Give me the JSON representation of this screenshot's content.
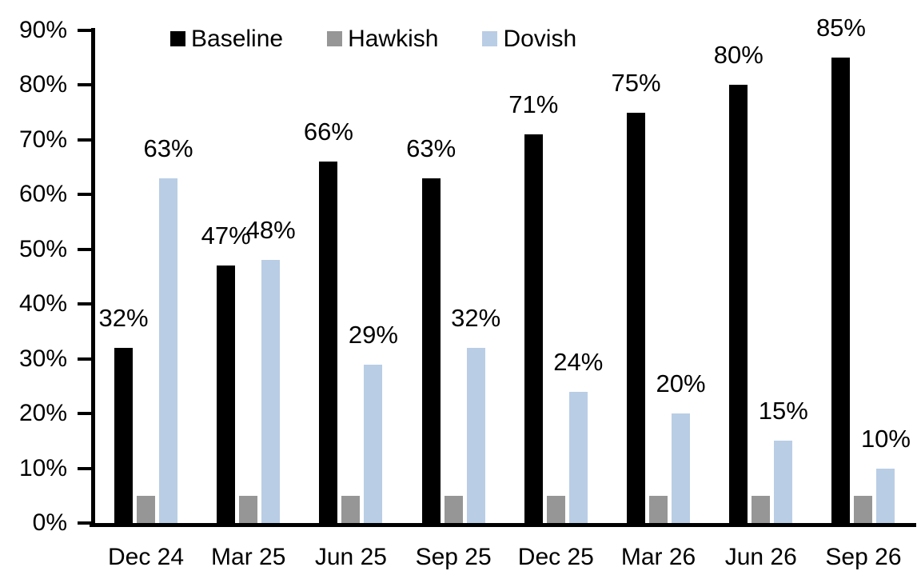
{
  "chart_data": {
    "type": "bar",
    "title": "",
    "categories": [
      "Dec 24",
      "Mar 25",
      "Jun 25",
      "Sep 25",
      "Dec 25",
      "Mar 26",
      "Jun 26",
      "Sep 26"
    ],
    "series": [
      {
        "name": "Baseline",
        "color": "#000000",
        "values": [
          32,
          47,
          66,
          63,
          71,
          75,
          80,
          85
        ],
        "labels": [
          "32%",
          "47%",
          "66%",
          "63%",
          "71%",
          "75%",
          "80%",
          "85%"
        ]
      },
      {
        "name": "Hawkish",
        "color": "#969696",
        "values": [
          5,
          5,
          5,
          5,
          5,
          5,
          5,
          5
        ],
        "labels": null
      },
      {
        "name": "Dovish",
        "color": "#B9CDE5",
        "values": [
          63,
          48,
          29,
          32,
          24,
          20,
          15,
          10
        ],
        "labels": [
          "63%",
          "48%",
          "29%",
          "32%",
          "24%",
          "20%",
          "15%",
          "10%"
        ]
      }
    ],
    "y_axis": {
      "min": 0,
      "max": 90,
      "step": 10,
      "tick_labels": [
        "0%",
        "10%",
        "20%",
        "30%",
        "40%",
        "50%",
        "60%",
        "70%",
        "80%",
        "90%"
      ]
    },
    "x_axis_label": "",
    "y_axis_label": "",
    "legend": {
      "position": "top",
      "entries": [
        "Baseline",
        "Hawkish",
        "Dovish"
      ]
    },
    "grid": false,
    "axis_color": "#000000",
    "background_color": "#FFFFFF"
  }
}
